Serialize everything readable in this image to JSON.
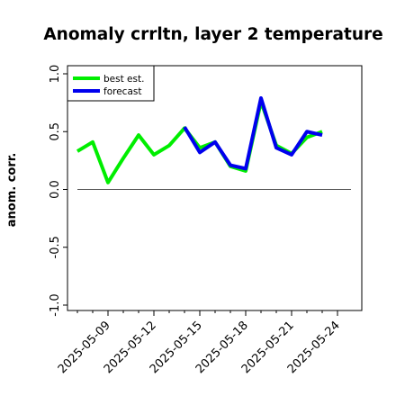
{
  "chart_data": {
    "type": "line",
    "title": "Anomaly crrltn, layer 2 temperature",
    "xlabel": "",
    "ylabel": "anom. corr.",
    "ylim": [
      -1.0,
      1.0
    ],
    "yticks": [
      "-1.0",
      "-0.5",
      "0.0",
      "0.5",
      "1.0"
    ],
    "x": [
      "2025-05-07",
      "2025-05-08",
      "2025-05-09",
      "2025-05-10",
      "2025-05-11",
      "2025-05-12",
      "2025-05-13",
      "2025-05-14",
      "2025-05-15",
      "2025-05-16",
      "2025-05-17",
      "2025-05-18",
      "2025-05-19",
      "2025-05-20",
      "2025-05-21",
      "2025-05-22",
      "2025-05-23",
      "2025-05-24"
    ],
    "xticks": [
      "2025-05-09",
      "2025-05-12",
      "2025-05-15",
      "2025-05-18",
      "2025-05-21",
      "2025-05-24"
    ],
    "highlight_tick": "2025-05-15",
    "highlight_color": "#2e8b2e",
    "zero_line": 0.0,
    "grid": false,
    "legend_position": "top-left",
    "series": [
      {
        "name": "best est.",
        "color": "#00ee00",
        "values": [
          0.33,
          0.41,
          0.06,
          0.27,
          0.47,
          0.3,
          0.38,
          0.53,
          0.36,
          0.41,
          0.2,
          0.16,
          0.76,
          0.38,
          0.31,
          0.45,
          0.5,
          null
        ]
      },
      {
        "name": "forecast",
        "color": "#0000ee",
        "values": [
          null,
          null,
          null,
          null,
          null,
          null,
          null,
          0.54,
          0.32,
          0.41,
          0.21,
          0.18,
          0.79,
          0.36,
          0.3,
          0.5,
          0.47,
          null
        ]
      }
    ]
  }
}
